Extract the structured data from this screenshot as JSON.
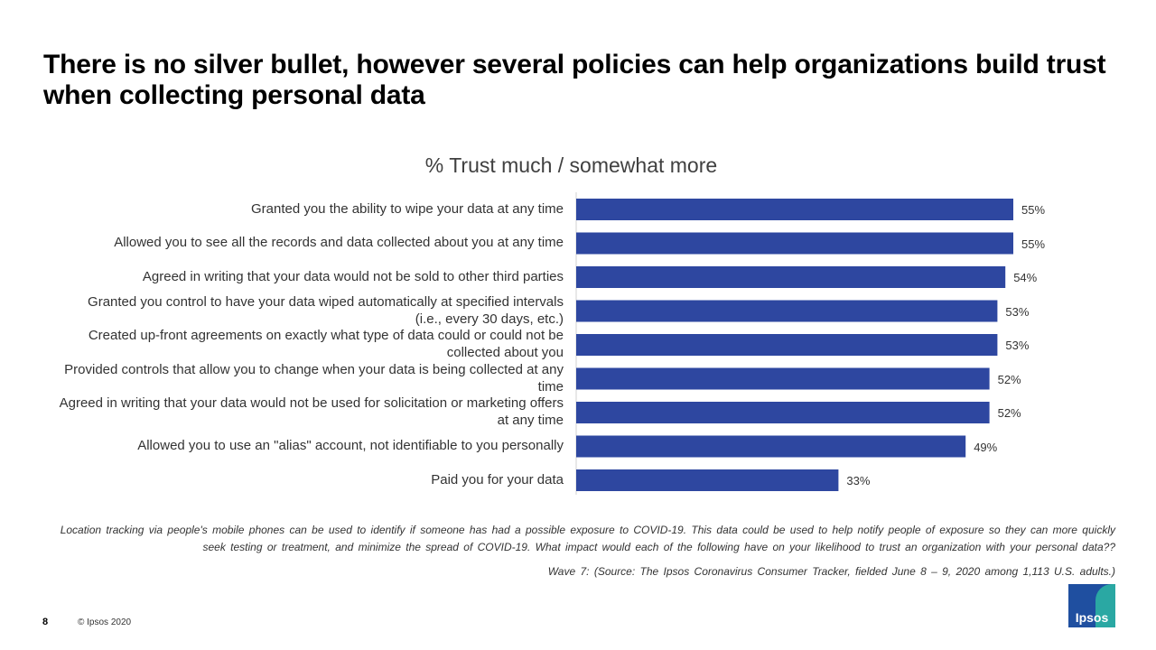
{
  "title": "There is no silver bullet, however several policies can help organizations build trust when collecting personal data",
  "chart_data": {
    "type": "bar",
    "orientation": "horizontal",
    "title": "% Trust much / somewhat more",
    "xlim": [
      0,
      60
    ],
    "bar_color": "#2e47a0",
    "categories": [
      "Granted you the ability to wipe your data at any time",
      "Allowed you to see all the records and data collected about you at any time",
      "Agreed in writing that your data would not be sold to other third parties",
      "Granted you control to have your data wiped automatically at specified intervals (i.e., every 30 days, etc.)",
      "Created up-front agreements on exactly what type of data could or could not be collected about you",
      "Provided controls that allow you to change when your data is being collected at any time",
      "Agreed in writing that your data would not be used for solicitation or marketing offers at any time",
      "Allowed you to use an \"alias\" account, not identifiable to you personally",
      "Paid you for your data"
    ],
    "values": [
      55,
      55,
      54,
      53,
      53,
      52,
      52,
      49,
      33
    ],
    "value_labels": [
      "55%",
      "55%",
      "54%",
      "53%",
      "53%",
      "52%",
      "52%",
      "49%",
      "33%"
    ]
  },
  "footnote": {
    "description": "Location tracking via people's mobile phones can be used to identify if someone has had a possible exposure to COVID-19. This data could be used to help notify people of exposure so they can more quickly seek testing or treatment, and minimize the spread of COVID-19. What impact would each of the following have on your likelihood to trust an organization with your personal data??",
    "source": "Wave 7: (Source: The Ipsos Coronavirus Consumer Tracker, fielded June 8 – 9, 2020 among 1,113 U.S. adults.)"
  },
  "page_number": "8",
  "copyright": "© Ipsos 2020",
  "logo_text": "Ipsos"
}
